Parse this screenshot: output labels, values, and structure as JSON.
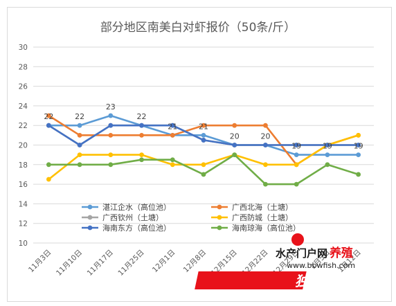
{
  "chart_data": {
    "type": "line",
    "title": "部分地区南美白对虾报价（50条/斤）",
    "categories": [
      "11月3日",
      "11月10日",
      "11月17日",
      "11月25日",
      "12月1日",
      "12月8日",
      "12月15日",
      "12月22日",
      "12月29日",
      "1月5日",
      "1月12日"
    ],
    "ylim": [
      10,
      30
    ],
    "yticks": [
      10,
      12,
      14,
      16,
      18,
      20,
      22,
      24,
      26,
      28,
      30
    ],
    "grid": true,
    "legend": "bottom-left, inside plot area",
    "series": [
      {
        "name": "湛江企水（高位池）",
        "color": "#5b9bd5",
        "values": [
          22,
          22,
          23,
          22,
          21,
          21,
          20,
          20,
          19,
          19,
          19
        ]
      },
      {
        "name": "广西北海（土塘）",
        "color": "#ed7d31",
        "values": [
          23,
          21,
          21,
          21,
          21,
          22,
          22,
          22,
          18,
          20,
          21
        ]
      },
      {
        "name": "广西钦州（土塘）",
        "color": "#a5a5a5",
        "values": [
          22,
          20,
          22,
          22,
          22,
          20.5,
          20,
          20,
          20,
          20,
          20
        ]
      },
      {
        "name": "广西防城（土塘）",
        "color": "#ffc000",
        "values": [
          16.5,
          19,
          19,
          19,
          18,
          18,
          19,
          18,
          18,
          20,
          21
        ]
      },
      {
        "name": "海南东方（高位池）",
        "color": "#4472c4",
        "values": [
          22,
          20,
          22,
          22,
          22,
          20.5,
          20,
          20,
          20,
          20,
          20
        ]
      },
      {
        "name": "海南琼海（高位池）",
        "color": "#70ad47",
        "values": [
          18,
          18,
          18,
          18.5,
          18.5,
          17,
          19,
          16,
          16,
          18,
          17
        ]
      }
    ],
    "data_labels": [
      {
        "index": 0,
        "value": "22"
      },
      {
        "index": 1,
        "value": "22"
      },
      {
        "index": 2,
        "value": "23"
      },
      {
        "index": 3,
        "value": "22"
      },
      {
        "index": 4,
        "value": "21"
      },
      {
        "index": 5,
        "value": "21"
      },
      {
        "index": 6,
        "value": "20"
      },
      {
        "index": 7,
        "value": "20"
      },
      {
        "index": 8,
        "value": "19"
      },
      {
        "index": 9,
        "value": "19"
      },
      {
        "index": 10,
        "value": "19"
      }
    ]
  },
  "watermark": {
    "line1": "水产门户网",
    "line2": "养殖",
    "url": "www.bbwfish.com",
    "line3": "独家报道",
    "color": "#e8121a"
  }
}
